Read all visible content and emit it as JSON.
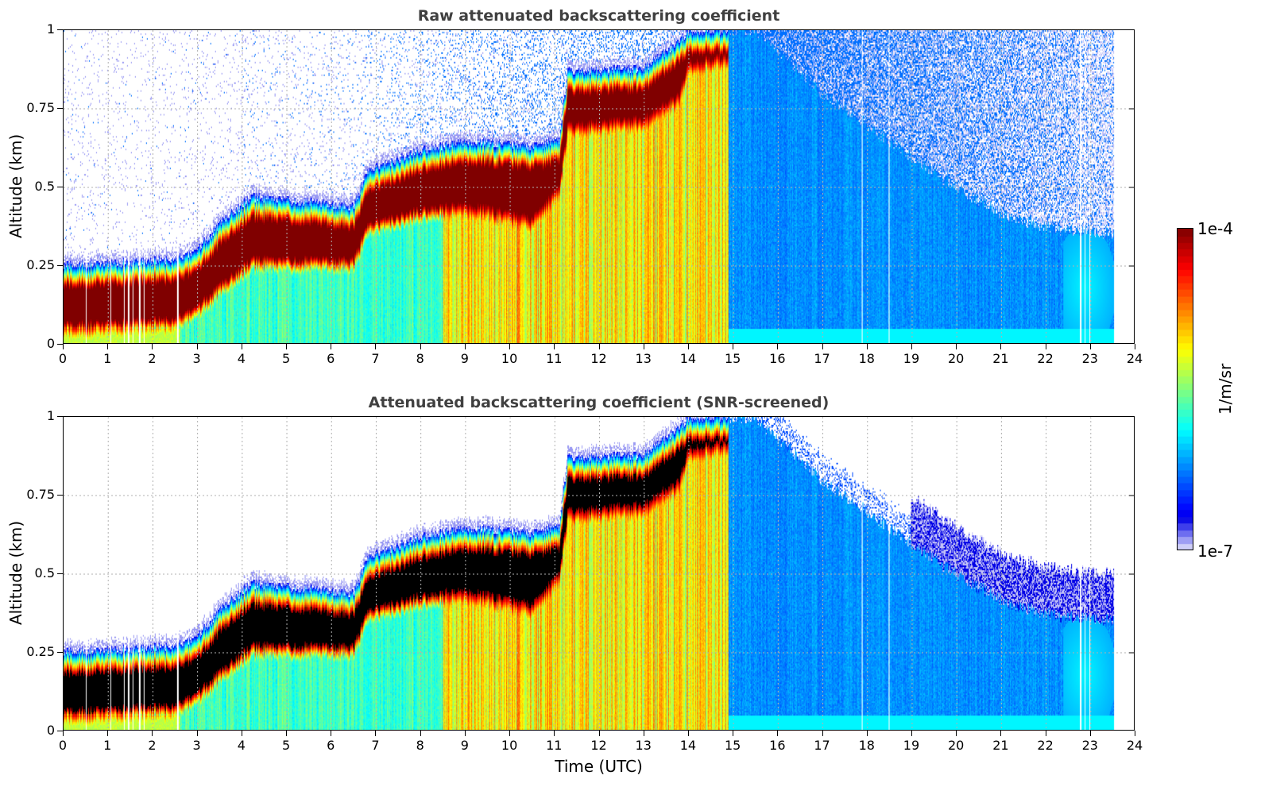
{
  "chart_data": [
    {
      "type": "heatmap",
      "title": "Raw attenuated backscattering coefficient",
      "xlabel": "",
      "ylabel": "Altitude (km)",
      "xlim": [
        0,
        24
      ],
      "ylim": [
        0,
        1
      ],
      "xticks": [
        "0",
        "1",
        "2",
        "3",
        "4",
        "5",
        "6",
        "7",
        "8",
        "9",
        "10",
        "11",
        "12",
        "13",
        "14",
        "15",
        "16",
        "17",
        "18",
        "19",
        "20",
        "21",
        "22",
        "23",
        "24"
      ],
      "yticks": [
        "0",
        "0.25",
        "0.5",
        "0.75",
        "1"
      ],
      "grid": true,
      "screened": false
    },
    {
      "type": "heatmap",
      "title": "Attenuated backscattering coefficient (SNR-screened)",
      "xlabel": "Time (UTC)",
      "ylabel": "Altitude (km)",
      "xlim": [
        0,
        24
      ],
      "ylim": [
        0,
        1
      ],
      "xticks": [
        "0",
        "1",
        "2",
        "3",
        "4",
        "5",
        "6",
        "7",
        "8",
        "9",
        "10",
        "11",
        "12",
        "13",
        "14",
        "15",
        "16",
        "17",
        "18",
        "19",
        "20",
        "21",
        "22",
        "23",
        "24"
      ],
      "yticks": [
        "0",
        "0.25",
        "0.5",
        "0.75",
        "1"
      ],
      "grid": true,
      "screened": true
    }
  ],
  "layer": {
    "time_utc": [
      0,
      2.5,
      3.0,
      3.6,
      4.2,
      6.5,
      6.8,
      8.0,
      9.0,
      10.5,
      11.1,
      11.3,
      13.0,
      13.8,
      14.0,
      14.9
    ],
    "top_km": [
      0.25,
      0.27,
      0.3,
      0.4,
      0.47,
      0.44,
      0.55,
      0.62,
      0.65,
      0.63,
      0.65,
      0.87,
      0.88,
      0.97,
      1.0,
      1.0
    ],
    "base_km": [
      0.06,
      0.08,
      0.12,
      0.2,
      0.27,
      0.27,
      0.38,
      0.43,
      0.45,
      0.4,
      0.5,
      0.7,
      0.72,
      0.8,
      0.9,
      0.92
    ]
  },
  "residual_layer": {
    "time_utc": [
      14.9,
      15.5,
      17.0,
      19.0,
      20.0,
      21.0,
      22.0,
      23.55
    ],
    "top_km": [
      1.0,
      1.0,
      0.8,
      0.6,
      0.5,
      0.42,
      0.37,
      0.35
    ]
  },
  "data_end_utc": 23.55,
  "gaps_utc": [
    0.5,
    1.05,
    1.35,
    1.45,
    1.55,
    1.7,
    1.8,
    2.55,
    17.9,
    18.5,
    22.8,
    22.9,
    23.0
  ],
  "colorbar": {
    "max_label": "1e-4",
    "min_label": "1e-7",
    "unit": "1/m/sr",
    "log_range": [
      -7,
      -4
    ],
    "colormap": "jet",
    "saturated_color_screened": "#000000"
  }
}
